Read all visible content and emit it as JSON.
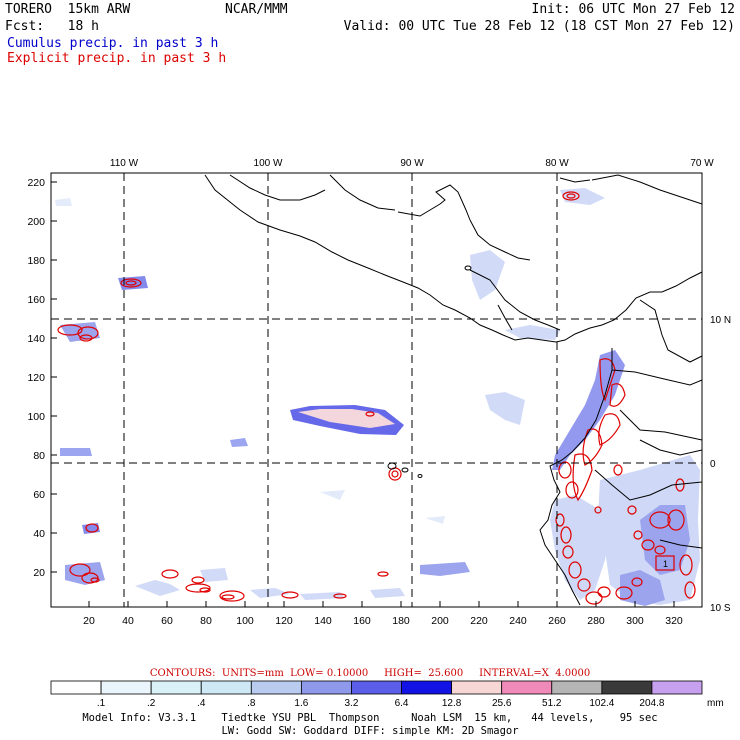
{
  "header": {
    "model": "TORERO  15km ARW",
    "org": "NCAR/MMM",
    "init": "Init: 06 UTC Mon 27 Feb 12",
    "fcst": "Fcst:   18 h",
    "valid": "Valid: 00 UTC Tue 28 Feb 12 (18 CST Mon 27 Feb 12)",
    "legend_cumulus": "Cumulus precip. in past 3 h",
    "legend_explicit": "Explicit precip. in past 3 h"
  },
  "axes": {
    "top_lon_labels": [
      "110 W",
      "100 W",
      "90 W",
      "80 W",
      "70 W"
    ],
    "right_lat_labels": [
      "10 N",
      "0",
      "10 S"
    ],
    "y_ticks": [
      "220",
      "200",
      "180",
      "160",
      "140",
      "120",
      "100",
      "80",
      "60",
      "40",
      "20"
    ],
    "x_ticks": [
      "20",
      "40",
      "60",
      "80",
      "100",
      "120",
      "140",
      "160",
      "180",
      "200",
      "220",
      "240",
      "260",
      "280",
      "300",
      "320"
    ]
  },
  "contours_line": "CONTOURS:  UNITS=mm  LOW= 0.10000     HIGH=  25.600     INTERVAL=X  4.0000",
  "colorbar": {
    "labels": [
      ".1",
      ".2",
      ".4",
      ".8",
      "1.6",
      "3.2",
      "6.4",
      "12.8",
      "25.6",
      "51.2",
      "102.4",
      "204.8"
    ],
    "units": "mm",
    "colors": [
      "#ffffff",
      "#eaf6fb",
      "#d9f2f7",
      "#cfe8f6",
      "#b9ccf0",
      "#8f99ec",
      "#5b5ee8",
      "#1212e4",
      "#f7d6d6",
      "#f08ab8",
      "#b5b5b5",
      "#3a3a3a",
      "#c8a0f0"
    ]
  },
  "footer": {
    "line1": "Model Info: V3.3.1    Tiedtke YSU PBL  Thompson     Noah LSM  15 km,   44 levels,    95 sec",
    "line2": "LW: Godd SW: Goddard DIFF: simple KM: 2D Smagor"
  },
  "box_label": "1"
}
